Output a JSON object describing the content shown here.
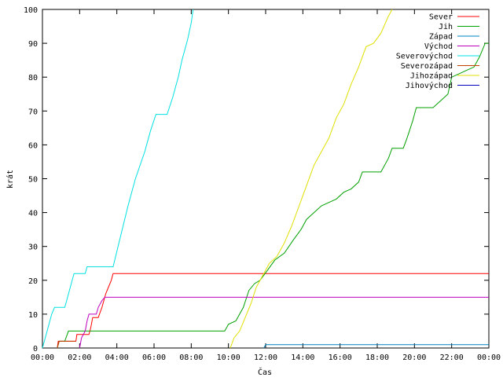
{
  "chart_data": {
    "type": "line",
    "xlabel": "Čas",
    "ylabel": "krát",
    "xlim": [
      0,
      24
    ],
    "ylim": [
      0,
      100
    ],
    "xticks": [
      {
        "v": 0,
        "label": "00:00"
      },
      {
        "v": 2,
        "label": "02:00"
      },
      {
        "v": 4,
        "label": "04:00"
      },
      {
        "v": 6,
        "label": "06:00"
      },
      {
        "v": 8,
        "label": "08:00"
      },
      {
        "v": 10,
        "label": "10:00"
      },
      {
        "v": 12,
        "label": "12:00"
      },
      {
        "v": 14,
        "label": "14:00"
      },
      {
        "v": 16,
        "label": "16:00"
      },
      {
        "v": 18,
        "label": "18:00"
      },
      {
        "v": 20,
        "label": "20:00"
      },
      {
        "v": 22,
        "label": "22:00"
      },
      {
        "v": 24,
        "label": "00:00"
      }
    ],
    "yticks": [
      {
        "v": 0,
        "label": "0"
      },
      {
        "v": 10,
        "label": "10"
      },
      {
        "v": 20,
        "label": "20"
      },
      {
        "v": 30,
        "label": "30"
      },
      {
        "v": 40,
        "label": "40"
      },
      {
        "v": 50,
        "label": "50"
      },
      {
        "v": 60,
        "label": "60"
      },
      {
        "v": 70,
        "label": "70"
      },
      {
        "v": 80,
        "label": "80"
      },
      {
        "v": 90,
        "label": "90"
      },
      {
        "v": 100,
        "label": "100"
      }
    ],
    "grid": false,
    "legend_position": "top-right",
    "series": [
      {
        "name": "Sever",
        "color": "#ff0000",
        "points": [
          [
            0.8,
            0
          ],
          [
            0.85,
            2
          ],
          [
            1.8,
            2
          ],
          [
            1.85,
            4
          ],
          [
            2.5,
            4
          ],
          [
            2.6,
            6
          ],
          [
            2.7,
            9
          ],
          [
            3.0,
            9
          ],
          [
            3.2,
            12
          ],
          [
            3.4,
            16
          ],
          [
            3.7,
            20
          ],
          [
            3.8,
            22
          ],
          [
            24,
            22
          ]
        ]
      },
      {
        "name": "Jih",
        "color": "#00a000",
        "points": [
          [
            0.8,
            0
          ],
          [
            0.9,
            2
          ],
          [
            1.2,
            2
          ],
          [
            1.4,
            5
          ],
          [
            9.8,
            5
          ],
          [
            10.0,
            7
          ],
          [
            10.4,
            8
          ],
          [
            10.8,
            12
          ],
          [
            11.1,
            17
          ],
          [
            11.4,
            19
          ],
          [
            11.7,
            20
          ],
          [
            12.1,
            23
          ],
          [
            12.5,
            26
          ],
          [
            13.0,
            28
          ],
          [
            13.5,
            32
          ],
          [
            13.9,
            35
          ],
          [
            14.2,
            38
          ],
          [
            14.6,
            40
          ],
          [
            15.0,
            42
          ],
          [
            15.4,
            43
          ],
          [
            15.8,
            44
          ],
          [
            16.2,
            46
          ],
          [
            16.6,
            47
          ],
          [
            17.0,
            49
          ],
          [
            17.2,
            52
          ],
          [
            18.2,
            52
          ],
          [
            18.6,
            56
          ],
          [
            18.8,
            59
          ],
          [
            19.4,
            59
          ],
          [
            19.6,
            62
          ],
          [
            19.9,
            67
          ],
          [
            20.1,
            71
          ],
          [
            21.0,
            71
          ],
          [
            21.4,
            73
          ],
          [
            21.8,
            75
          ],
          [
            22.0,
            80
          ],
          [
            22.4,
            81
          ],
          [
            22.8,
            82
          ],
          [
            23.2,
            83
          ],
          [
            23.5,
            86
          ],
          [
            23.8,
            90
          ],
          [
            24,
            90
          ]
        ]
      },
      {
        "name": "Západ",
        "color": "#0080c0",
        "points": [
          [
            11.9,
            0
          ],
          [
            12.0,
            1
          ],
          [
            24,
            1
          ]
        ]
      },
      {
        "name": "Východ",
        "color": "#c000c0",
        "points": [
          [
            2.0,
            0
          ],
          [
            2.1,
            3
          ],
          [
            2.3,
            5
          ],
          [
            2.4,
            8
          ],
          [
            2.5,
            10
          ],
          [
            2.9,
            10
          ],
          [
            3.0,
            12
          ],
          [
            3.2,
            14
          ],
          [
            3.35,
            15
          ],
          [
            24,
            15
          ]
        ]
      },
      {
        "name": "Severovýchod",
        "color": "#00e0e0",
        "points": [
          [
            0,
            0
          ],
          [
            0.1,
            2
          ],
          [
            0.3,
            6
          ],
          [
            0.5,
            10
          ],
          [
            0.65,
            12
          ],
          [
            1.2,
            12
          ],
          [
            1.3,
            14
          ],
          [
            1.5,
            18
          ],
          [
            1.65,
            21
          ],
          [
            1.7,
            22
          ],
          [
            2.3,
            22
          ],
          [
            2.4,
            24
          ],
          [
            3.8,
            24
          ],
          [
            4.2,
            33
          ],
          [
            4.6,
            42
          ],
          [
            5.0,
            50
          ],
          [
            5.5,
            58
          ],
          [
            5.8,
            64
          ],
          [
            6.1,
            69
          ],
          [
            6.7,
            69
          ],
          [
            7.0,
            74
          ],
          [
            7.3,
            80
          ],
          [
            7.5,
            85
          ],
          [
            7.8,
            91
          ],
          [
            8.0,
            96
          ],
          [
            8.1,
            100
          ]
        ]
      },
      {
        "name": "Severozápad",
        "color": "#c04000",
        "points": [
          [
            0.8,
            0
          ],
          [
            0.9,
            2
          ],
          [
            1.8,
            2
          ]
        ]
      },
      {
        "name": "Jihozápad",
        "color": "#e0e000",
        "points": [
          [
            10.1,
            0
          ],
          [
            10.3,
            3
          ],
          [
            10.6,
            5
          ],
          [
            10.9,
            9
          ],
          [
            11.2,
            13
          ],
          [
            11.5,
            18
          ],
          [
            11.8,
            21
          ],
          [
            12.2,
            25
          ],
          [
            12.6,
            27
          ],
          [
            13.0,
            31
          ],
          [
            13.4,
            36
          ],
          [
            13.8,
            42
          ],
          [
            14.2,
            48
          ],
          [
            14.6,
            54
          ],
          [
            15.0,
            58
          ],
          [
            15.4,
            62
          ],
          [
            15.8,
            68
          ],
          [
            16.2,
            72
          ],
          [
            16.6,
            78
          ],
          [
            17.0,
            83
          ],
          [
            17.4,
            89
          ],
          [
            17.8,
            90
          ],
          [
            18.2,
            93
          ],
          [
            18.6,
            98
          ],
          [
            18.8,
            100
          ]
        ]
      },
      {
        "name": "Jihovýchod",
        "color": "#0000c0",
        "points": []
      }
    ]
  }
}
